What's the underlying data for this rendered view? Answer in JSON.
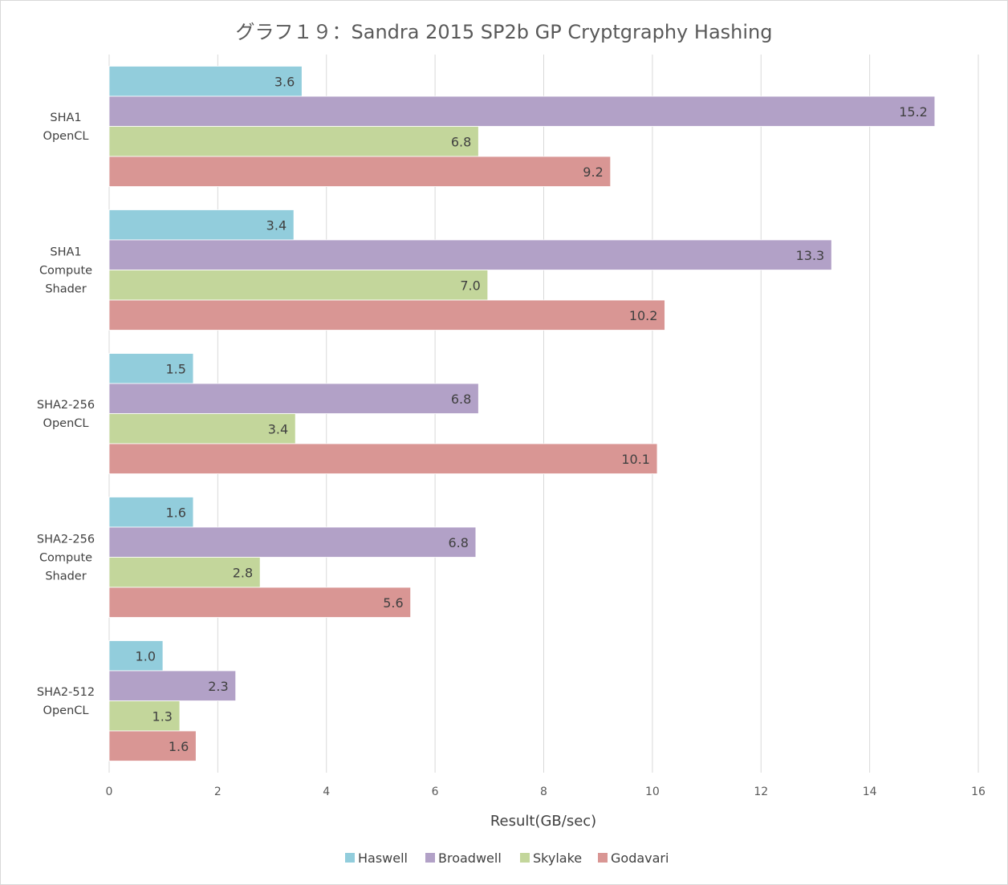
{
  "chart_data": {
    "type": "bar",
    "orientation": "horizontal",
    "title": "グラフ１９：Sandra 2015 SP2b GP Cryptgraphy Hashing",
    "xlabel": "Result(GB/sec)",
    "ylabel": "",
    "xlim": [
      0,
      16
    ],
    "x_ticks": [
      0,
      2,
      4,
      6,
      8,
      10,
      12,
      14,
      16
    ],
    "grid": true,
    "legend_position": "bottom",
    "categories": [
      [
        "SHA1",
        "OpenCL"
      ],
      [
        "SHA1",
        "Compute",
        "Shader"
      ],
      [
        "SHA2-256",
        "OpenCL"
      ],
      [
        "SHA2-256",
        "Compute",
        "Shader"
      ],
      [
        "SHA2-512",
        "OpenCL"
      ]
    ],
    "series": [
      {
        "name": "Haswell",
        "color": "#92cddc",
        "values": [
          3.55,
          3.4,
          1.55,
          1.55,
          0.99
        ],
        "labels": [
          "3.6",
          "3.4",
          "1.5",
          "1.6",
          "1.0"
        ]
      },
      {
        "name": "Broadwell",
        "color": "#b2a1c7",
        "values": [
          15.2,
          13.3,
          6.8,
          6.75,
          2.33
        ],
        "labels": [
          "15.2",
          "13.3",
          "6.8",
          "6.8",
          "2.3"
        ]
      },
      {
        "name": "Skylake",
        "color": "#c3d69b",
        "values": [
          6.8,
          6.97,
          3.43,
          2.78,
          1.3
        ],
        "labels": [
          "6.8",
          "7.0",
          "3.4",
          "2.8",
          "1.3"
        ]
      },
      {
        "name": "Godavari",
        "color": "#d99694",
        "values": [
          9.23,
          10.23,
          10.09,
          5.55,
          1.6
        ],
        "labels": [
          "9.2",
          "10.2",
          "10.1",
          "5.6",
          "1.6"
        ]
      }
    ]
  }
}
